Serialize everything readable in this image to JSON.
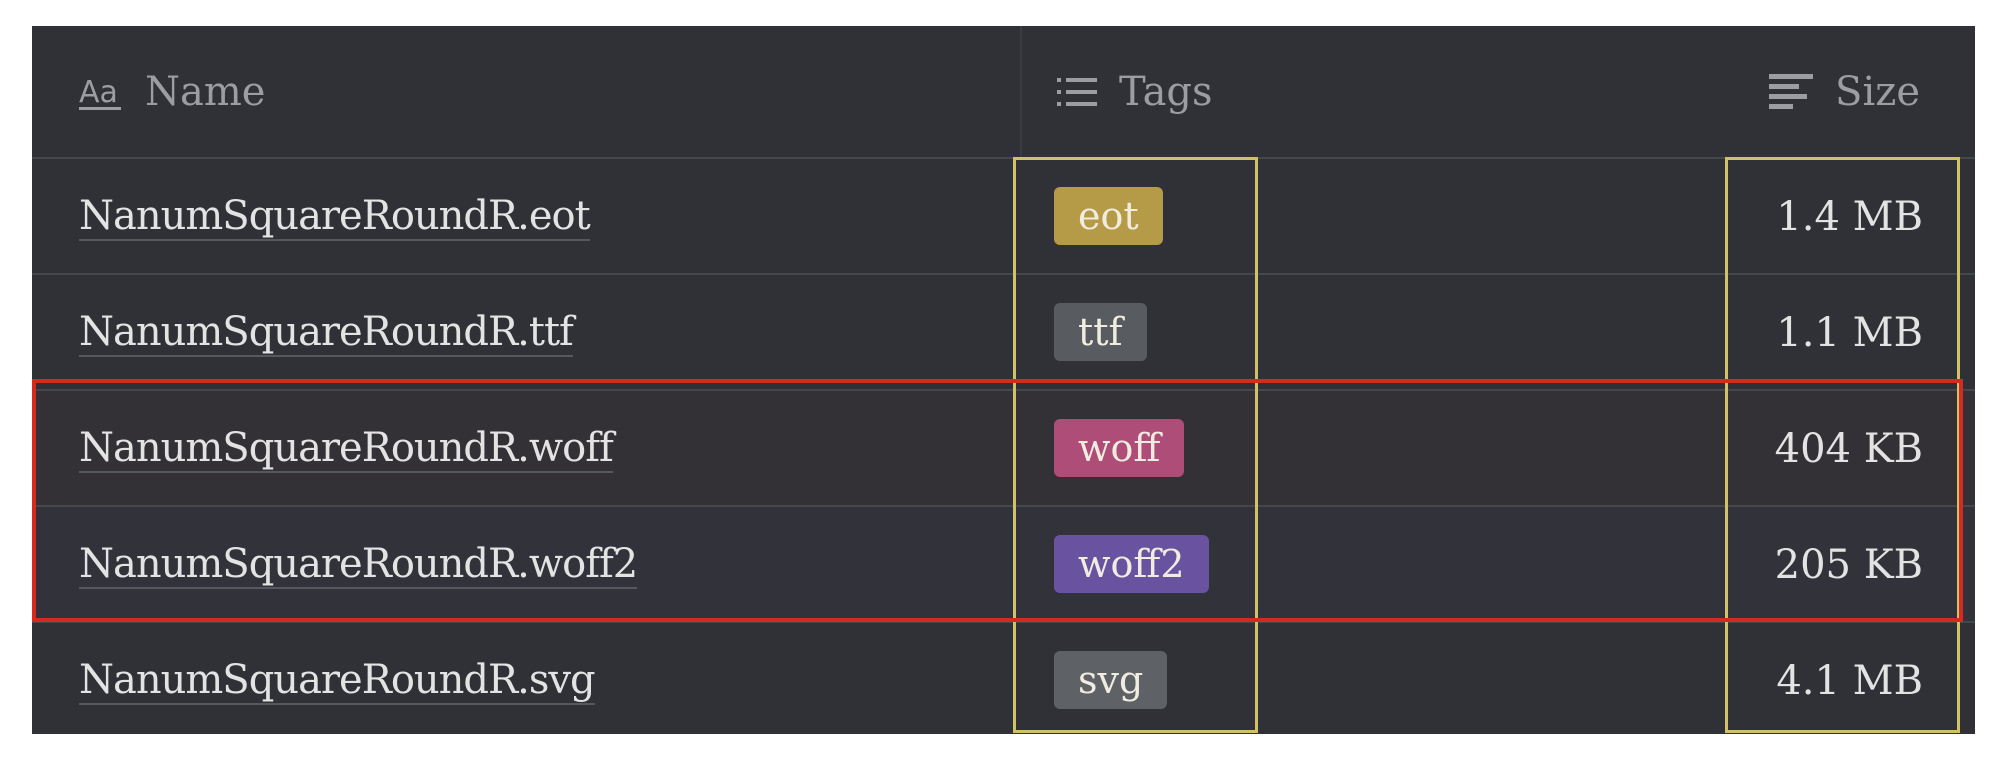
{
  "table": {
    "columns": [
      {
        "label": "Name",
        "icon": "text-aa-icon"
      },
      {
        "label": "Tags",
        "icon": "list-icon"
      },
      {
        "label": "Size",
        "icon": "align-left-lines-icon"
      }
    ],
    "rows": [
      {
        "name": "NanumSquareRoundR.eot",
        "tag": "eot",
        "tag_color": "#b59a48",
        "size": "1.4 MB"
      },
      {
        "name": "NanumSquareRoundR.ttf",
        "tag": "ttf",
        "tag_color": "#585c60",
        "size": "1.1 MB"
      },
      {
        "name": "NanumSquareRoundR.woff",
        "tag": "woff",
        "tag_color": "#ad4d78",
        "size": "404 KB"
      },
      {
        "name": "NanumSquareRoundR.woff2",
        "tag": "woff2",
        "tag_color": "#6952a0",
        "size": "205 KB"
      },
      {
        "name": "NanumSquareRoundR.svg",
        "tag": "svg",
        "tag_color": "#5e6266",
        "size": "4.1 MB"
      }
    ]
  },
  "highlights": {
    "column_box_color": "#d2c06a",
    "row_box_color": "#d42a1f"
  }
}
